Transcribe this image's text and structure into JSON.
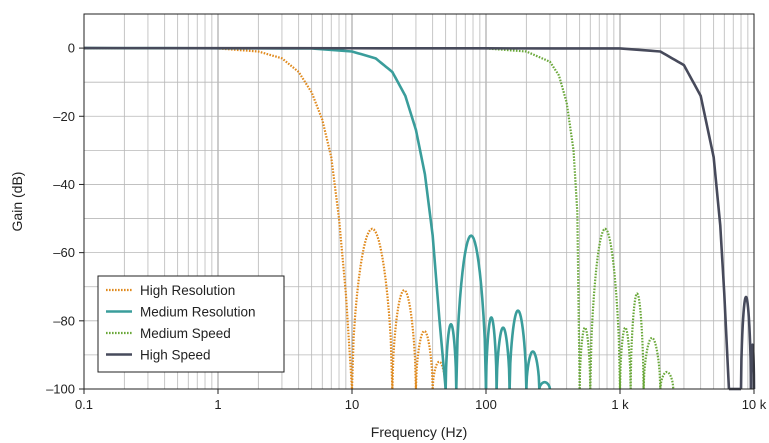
{
  "chart_data": {
    "type": "line",
    "xlabel": "Frequency (Hz)",
    "ylabel": "Gain (dB)",
    "xscale": "log",
    "xlim": [
      0.1,
      10000
    ],
    "ylim": [
      -100,
      10
    ],
    "grid": true,
    "legend_position": "bottom-left",
    "x_ticks": [
      {
        "value": 0.1,
        "label": "0.1"
      },
      {
        "value": 1,
        "label": "1"
      },
      {
        "value": 10,
        "label": "10"
      },
      {
        "value": 100,
        "label": "100"
      },
      {
        "value": 1000,
        "label": "1 k"
      },
      {
        "value": 10000,
        "label": "10 k"
      }
    ],
    "y_ticks": [
      {
        "value": 0,
        "label": "0"
      },
      {
        "value": -20,
        "label": "–20"
      },
      {
        "value": -40,
        "label": "–40"
      },
      {
        "value": -60,
        "label": "–60"
      },
      {
        "value": -80,
        "label": "–80"
      },
      {
        "value": -100,
        "label": "–100"
      }
    ],
    "series": [
      {
        "name": "High Resolution",
        "color": "#e08a1e",
        "style": "dotted",
        "lobes": [
          [
            10,
            20,
            -53
          ],
          [
            20,
            30,
            -71
          ],
          [
            30,
            40,
            -83
          ],
          [
            40,
            50,
            -92
          ]
        ],
        "points": [
          [
            0.1,
            0
          ],
          [
            1,
            -0.1
          ],
          [
            2,
            -1
          ],
          [
            3,
            -3
          ],
          [
            4,
            -7
          ],
          [
            5,
            -13
          ],
          [
            6,
            -21
          ],
          [
            7,
            -32
          ],
          [
            8,
            -50
          ],
          [
            9,
            -72
          ],
          [
            10,
            -100
          ]
        ]
      },
      {
        "name": "Medium Resolution",
        "color": "#3a9d9b",
        "style": "solid",
        "lobes": [
          [
            50,
            60,
            -81
          ],
          [
            60,
            100,
            -55
          ],
          [
            100,
            120,
            -79
          ],
          [
            120,
            150,
            -82
          ],
          [
            150,
            200,
            -77
          ],
          [
            200,
            250,
            -89
          ],
          [
            250,
            300,
            -98
          ]
        ],
        "points": [
          [
            0.1,
            0
          ],
          [
            5,
            -0.1
          ],
          [
            10,
            -1
          ],
          [
            15,
            -3
          ],
          [
            20,
            -7
          ],
          [
            25,
            -14
          ],
          [
            30,
            -24
          ],
          [
            35,
            -37
          ],
          [
            40,
            -55
          ],
          [
            45,
            -80
          ],
          [
            50,
            -100
          ]
        ]
      },
      {
        "name": "Medium Speed",
        "color": "#6aa83a",
        "style": "dotted",
        "lobes": [
          [
            500,
            600,
            -82
          ],
          [
            600,
            1000,
            -53
          ],
          [
            1000,
            1200,
            -82
          ],
          [
            1200,
            1500,
            -72
          ],
          [
            1500,
            2000,
            -85
          ],
          [
            2000,
            2500,
            -95
          ]
        ],
        "points": [
          [
            0.1,
            0
          ],
          [
            100,
            -0.1
          ],
          [
            200,
            -1
          ],
          [
            300,
            -4
          ],
          [
            350,
            -8
          ],
          [
            400,
            -16
          ],
          [
            450,
            -30
          ],
          [
            480,
            -48
          ],
          [
            500,
            -100
          ]
        ]
      },
      {
        "name": "High Speed",
        "color": "#474a5b",
        "style": "solid",
        "lobes": [
          [
            6500,
            8000,
            -100
          ],
          [
            8000,
            9500,
            -73
          ],
          [
            9500,
            10000,
            -87
          ]
        ],
        "points": [
          [
            0.1,
            0
          ],
          [
            1000,
            -0.1
          ],
          [
            2000,
            -1
          ],
          [
            3000,
            -5
          ],
          [
            4000,
            -14
          ],
          [
            5000,
            -32
          ],
          [
            5600,
            -52
          ],
          [
            6000,
            -72
          ],
          [
            6500,
            -100
          ]
        ]
      }
    ]
  }
}
